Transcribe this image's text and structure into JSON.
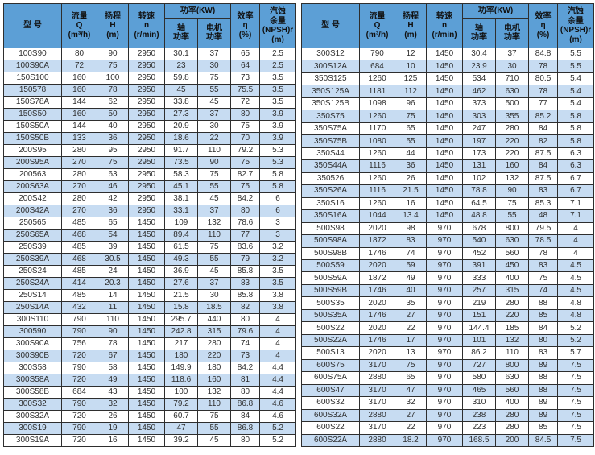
{
  "colors": {
    "header_bg": "#5c9fd6",
    "stripe_bg": "#c7dcf2",
    "border": "#2e2e2e",
    "text": "#2f2f2f"
  },
  "header": {
    "model": "型 号",
    "flow": "流量\nQ\n(m³/h)",
    "head": "扬程\nH\n(m)",
    "speed": "转速\nn\n(r/min)",
    "power_group": "功率(KW)",
    "shaft": "轴\n功率",
    "motor": "电机\n功率",
    "efficiency": "效率\nη\n(%)",
    "npsh": "汽蚀\n余量\n(NPSH)r\n(m)"
  },
  "column_keys": [
    "model",
    "flow-q",
    "head-h",
    "speed-n",
    "shaft-power",
    "motor-power",
    "efficiency",
    "npsh"
  ],
  "left_table": {
    "rows": [
      [
        "100S90",
        "80",
        "90",
        "2950",
        "30.1",
        "37",
        "65",
        "2.5"
      ],
      [
        "100S90A",
        "72",
        "75",
        "2950",
        "23",
        "30",
        "64",
        "2.5"
      ],
      [
        "150S100",
        "160",
        "100",
        "2950",
        "59.8",
        "75",
        "73",
        "3.5"
      ],
      [
        "150578",
        "160",
        "78",
        "2950",
        "45",
        "55",
        "75.5",
        "3.5"
      ],
      [
        "150S78A",
        "144",
        "62",
        "2950",
        "33.8",
        "45",
        "72",
        "3.5"
      ],
      [
        "150S50",
        "160",
        "50",
        "2950",
        "27.3",
        "37",
        "80",
        "3.9"
      ],
      [
        "150S50A",
        "144",
        "40",
        "2950",
        "20.9",
        "30",
        "75",
        "3.9"
      ],
      [
        "150S50B",
        "133",
        "36",
        "2950",
        "18.6",
        "22",
        "70",
        "3.9"
      ],
      [
        "200S95",
        "280",
        "95",
        "2950",
        "91.7",
        "110",
        "79.2",
        "5.3"
      ],
      [
        "200S95A",
        "270",
        "75",
        "2950",
        "73.5",
        "90",
        "75",
        "5.3"
      ],
      [
        "200563",
        "280",
        "63",
        "2950",
        "58.3",
        "75",
        "82.7",
        "5.8"
      ],
      [
        "200S63A",
        "270",
        "46",
        "2950",
        "45.1",
        "55",
        "75",
        "5.8"
      ],
      [
        "200S42",
        "280",
        "42",
        "2950",
        "38.1",
        "45",
        "84.2",
        "6"
      ],
      [
        "200S42A",
        "270",
        "36",
        "2950",
        "33.1",
        "37",
        "80",
        "6"
      ],
      [
        "250565",
        "485",
        "65",
        "1450",
        "109",
        "132",
        "78.6",
        "3"
      ],
      [
        "250S65A",
        "468",
        "54",
        "1450",
        "89.4",
        "110",
        "77",
        "3"
      ],
      [
        "250S39",
        "485",
        "39",
        "1450",
        "61.5",
        "75",
        "83.6",
        "3.2"
      ],
      [
        "250S39A",
        "468",
        "30.5",
        "1450",
        "49.3",
        "55",
        "79",
        "3.2"
      ],
      [
        "250S24",
        "485",
        "24",
        "1450",
        "36.9",
        "45",
        "85.8",
        "3.5"
      ],
      [
        "250S24A",
        "414",
        "20.3",
        "1450",
        "27.6",
        "37",
        "83",
        "3.5"
      ],
      [
        "250S14",
        "485",
        "14",
        "1450",
        "21.5",
        "30",
        "85.8",
        "3.8"
      ],
      [
        "250S14A",
        "432",
        "11",
        "1450",
        "15.8",
        "18.5",
        "82",
        "3.8"
      ],
      [
        "300S110",
        "790",
        "110",
        "1450",
        "295.7",
        "440",
        "80",
        "4"
      ],
      [
        "300590",
        "790",
        "90",
        "1450",
        "242.8",
        "315",
        "79.6",
        "4"
      ],
      [
        "300S90A",
        "756",
        "78",
        "1450",
        "217",
        "280",
        "74",
        "4"
      ],
      [
        "300S90B",
        "720",
        "67",
        "1450",
        "180",
        "220",
        "73",
        "4"
      ],
      [
        "300S58",
        "790",
        "58",
        "1450",
        "149.9",
        "180",
        "84.2",
        "4.4"
      ],
      [
        "300S58A",
        "720",
        "49",
        "1450",
        "118.6",
        "160",
        "81",
        "4.4"
      ],
      [
        "300S58B",
        "684",
        "43",
        "1450",
        "100",
        "132",
        "80",
        "4.4"
      ],
      [
        "300S32",
        "790",
        "32",
        "1450",
        "79.2",
        "110",
        "86.8",
        "4.6"
      ],
      [
        "300S32A",
        "720",
        "26",
        "1450",
        "60.7",
        "75",
        "84",
        "4.6"
      ],
      [
        "300S19",
        "790",
        "19",
        "1450",
        "47",
        "55",
        "86.8",
        "5.2"
      ],
      [
        "300S19A",
        "720",
        "16",
        "1450",
        "39.2",
        "45",
        "80",
        "5.2"
      ]
    ]
  },
  "right_table": {
    "rows": [
      [
        "300S12",
        "790",
        "12",
        "1450",
        "30.4",
        "37",
        "84.8",
        "5.5"
      ],
      [
        "300S12A",
        "684",
        "10",
        "1450",
        "23.9",
        "30",
        "78",
        "5.5"
      ],
      [
        "350S125",
        "1260",
        "125",
        "1450",
        "534",
        "710",
        "80.5",
        "5.4"
      ],
      [
        "350S125A",
        "1181",
        "112",
        "1450",
        "462",
        "630",
        "78",
        "5.4"
      ],
      [
        "350S125B",
        "1098",
        "96",
        "1450",
        "373",
        "500",
        "77",
        "5.4"
      ],
      [
        "350S75",
        "1260",
        "75",
        "1450",
        "303",
        "355",
        "85.2",
        "5.8"
      ],
      [
        "350S75A",
        "1170",
        "65",
        "1450",
        "247",
        "280",
        "84",
        "5.8"
      ],
      [
        "350S75B",
        "1080",
        "55",
        "1450",
        "197",
        "220",
        "82",
        "5.8"
      ],
      [
        "350S44",
        "1260",
        "44",
        "1450",
        "173",
        "220",
        "87.5",
        "6.3"
      ],
      [
        "350S44A",
        "1116",
        "36",
        "1450",
        "131",
        "160",
        "84",
        "6.3"
      ],
      [
        "350526",
        "1260",
        "26",
        "1450",
        "102",
        "132",
        "87.5",
        "6.7"
      ],
      [
        "350S26A",
        "1116",
        "21.5",
        "1450",
        "78.8",
        "90",
        "83",
        "6.7"
      ],
      [
        "350S16",
        "1260",
        "16",
        "1450",
        "64.5",
        "75",
        "85.3",
        "7.1"
      ],
      [
        "350S16A",
        "1044",
        "13.4",
        "1450",
        "48.8",
        "55",
        "48",
        "7.1"
      ],
      [
        "500S98",
        "2020",
        "98",
        "970",
        "678",
        "800",
        "79.5",
        "4"
      ],
      [
        "500S98A",
        "1872",
        "83",
        "970",
        "540",
        "630",
        "78.5",
        "4"
      ],
      [
        "500S98B",
        "1746",
        "74",
        "970",
        "452",
        "560",
        "78",
        "4"
      ],
      [
        "500S59",
        "2020",
        "59",
        "970",
        "391",
        "450",
        "83",
        "4.5"
      ],
      [
        "500S59A",
        "1872",
        "49",
        "970",
        "333",
        "400",
        "75",
        "4.5"
      ],
      [
        "500S59B",
        "1746",
        "40",
        "970",
        "257",
        "315",
        "74",
        "4.5"
      ],
      [
        "500S35",
        "2020",
        "35",
        "970",
        "219",
        "280",
        "88",
        "4.8"
      ],
      [
        "500S35A",
        "1746",
        "27",
        "970",
        "151",
        "220",
        "85",
        "4.8"
      ],
      [
        "500S22",
        "2020",
        "22",
        "970",
        "144.4",
        "185",
        "84",
        "5.2"
      ],
      [
        "500S22A",
        "1746",
        "17",
        "970",
        "101",
        "132",
        "80",
        "5.2"
      ],
      [
        "500S13",
        "2020",
        "13",
        "970",
        "86.2",
        "110",
        "83",
        "5.7"
      ],
      [
        "600S75",
        "3170",
        "75",
        "970",
        "727",
        "800",
        "89",
        "7.5"
      ],
      [
        "600S75A",
        "2880",
        "65",
        "970",
        "580",
        "630",
        "88",
        "7.5"
      ],
      [
        "600S47",
        "3170",
        "47",
        "970",
        "465",
        "560",
        "88",
        "7.5"
      ],
      [
        "600S32",
        "3170",
        "32",
        "970",
        "310",
        "400",
        "89",
        "7.5"
      ],
      [
        "600S32A",
        "2880",
        "27",
        "970",
        "238",
        "280",
        "89",
        "7.5"
      ],
      [
        "600S22",
        "3170",
        "22",
        "970",
        "223",
        "280",
        "85",
        "7.5"
      ],
      [
        "600S22A",
        "2880",
        "18.2",
        "970",
        "168.5",
        "200",
        "84.5",
        "7.5"
      ]
    ]
  }
}
